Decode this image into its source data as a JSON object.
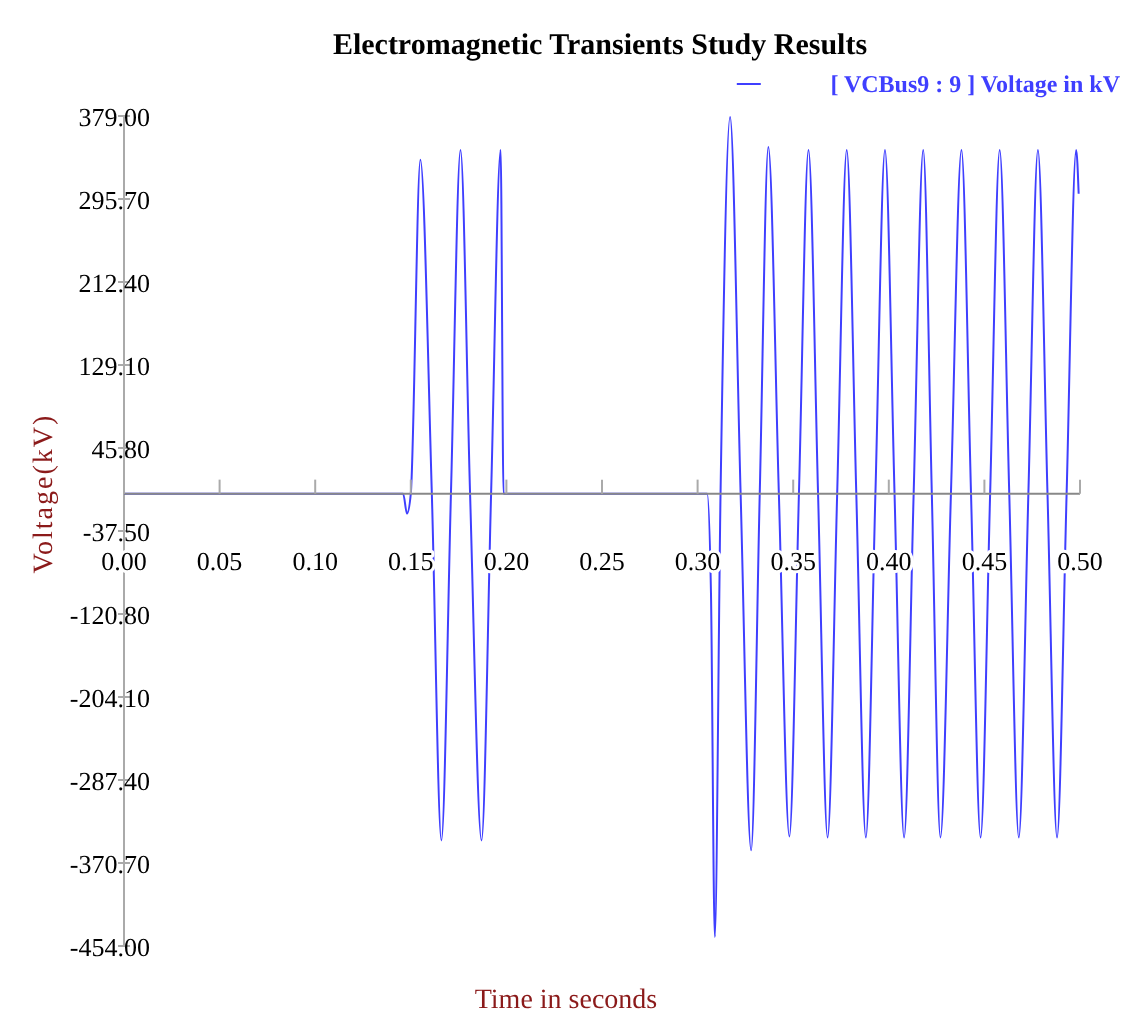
{
  "chart_data": {
    "type": "line",
    "title": "Electromagnetic Transients Study Results",
    "xlabel": "Time in seconds",
    "ylabel": "Voltage(kV)",
    "xlim": [
      0,
      0.5
    ],
    "xticks": [
      {
        "value": 0,
        "label": "0.00"
      },
      {
        "value": 0.05,
        "label": "0.05"
      },
      {
        "value": 0.1,
        "label": "0.10"
      },
      {
        "value": 0.15,
        "label": "0.15"
      },
      {
        "value": 0.2,
        "label": "0.20"
      },
      {
        "value": 0.25,
        "label": "0.25"
      },
      {
        "value": 0.3,
        "label": "0.30"
      },
      {
        "value": 0.35,
        "label": "0.35"
      },
      {
        "value": 0.4,
        "label": "0.40"
      },
      {
        "value": 0.45,
        "label": "0.45"
      },
      {
        "value": 0.5,
        "label": "0.50"
      }
    ],
    "ylim": [
      -454,
      379
    ],
    "yticks": [
      {
        "value": 379,
        "label": "379.00"
      },
      {
        "value": 295.7,
        "label": "295.70"
      },
      {
        "value": 212.4,
        "label": "212.40"
      },
      {
        "value": 129.1,
        "label": "129.10"
      },
      {
        "value": 45.8,
        "label": "45.80"
      },
      {
        "value": -37.5,
        "label": "-37.50"
      },
      {
        "value": -120.8,
        "label": "-120.80"
      },
      {
        "value": -204.1,
        "label": "-204.10"
      },
      {
        "value": -287.4,
        "label": "-287.40"
      },
      {
        "value": -370.7,
        "label": "-370.70"
      },
      {
        "value": -454,
        "label": "-454.00"
      }
    ],
    "legend": "top right",
    "grid": false,
    "marker": "none",
    "line_style": "solid",
    "series": [
      {
        "name": "[ VCBus9 : 9 ] Voltage in kV",
        "color": "#3f3fff",
        "x": [
          0,
          0.146,
          0.148,
          0.15,
          0.155,
          0.161,
          0.166,
          0.171,
          0.176,
          0.181,
          0.187,
          0.192,
          0.197,
          0.1985,
          0.305,
          0.307,
          0.309,
          0.312,
          0.317,
          0.3225,
          0.328,
          0.3325,
          0.337,
          0.3425,
          0.348,
          0.353,
          0.358,
          0.363,
          0.368,
          0.373,
          0.378,
          0.383,
          0.388,
          0.393,
          0.398,
          0.403,
          0.408,
          0.413,
          0.418,
          0.4225,
          0.427,
          0.4325,
          0.438,
          0.443,
          0.448,
          0.453,
          0.458,
          0.463,
          0.468,
          0.473,
          0.478,
          0.483,
          0.488,
          0.493,
          0.498,
          0.4993
        ],
        "values": [
          0,
          0,
          -20,
          0,
          335,
          0,
          -348,
          0,
          345,
          0,
          -348,
          0,
          345,
          0,
          0,
          -100,
          -445,
          0,
          378,
          0,
          -358,
          0,
          348,
          0,
          -344,
          0,
          345,
          0,
          -345,
          0,
          345,
          0,
          -345,
          0,
          345,
          0,
          -345,
          0,
          345,
          0,
          -345,
          0,
          345,
          0,
          -345,
          0,
          345,
          0,
          -345,
          0,
          345,
          0,
          -345,
          0,
          345,
          301
        ]
      }
    ]
  }
}
